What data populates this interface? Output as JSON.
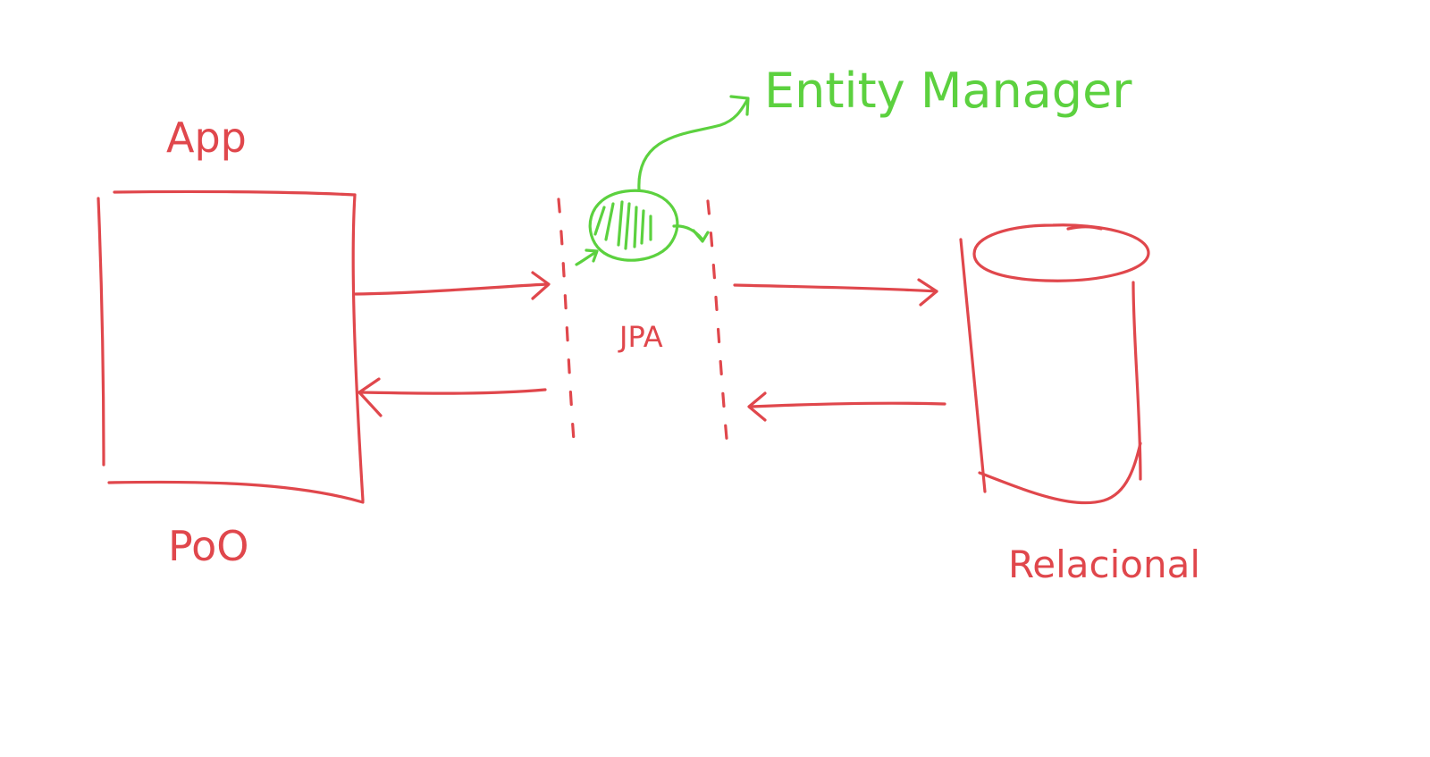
{
  "diagram": {
    "labels": {
      "app": "App",
      "poo": "PoO",
      "jpa": "JPA",
      "entity_manager": "Entity Manager",
      "relacional": "Relacional"
    },
    "colors": {
      "ink_red": "#e0474c",
      "ink_green": "#5cd13f",
      "background": "#ffffff"
    }
  }
}
